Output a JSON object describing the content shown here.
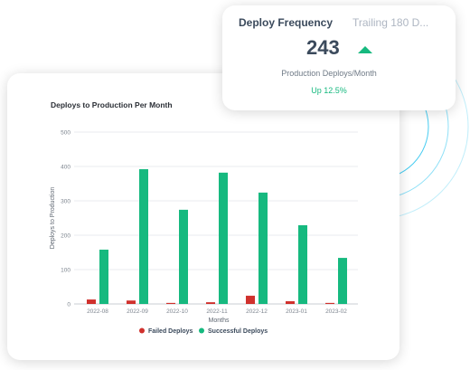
{
  "kpi": {
    "title": "Deploy Frequency",
    "range": "Trailing 180 D...",
    "value": "243",
    "trend": "up",
    "label": "Production Deploys/Month",
    "change": "Up 12.5%"
  },
  "colors": {
    "failed": "#d0312d",
    "successful": "#16b97f",
    "accent_ring": "#33c6f0"
  },
  "chart_data": {
    "type": "bar",
    "title": "Deploys to Production Per Month",
    "xlabel": "Months",
    "ylabel": "Deploys to Production",
    "ylim": [
      0,
      500
    ],
    "yticks": [
      "0",
      "100",
      "200",
      "300",
      "400",
      "500"
    ],
    "categories": [
      "2022-08",
      "2022-09",
      "2022-10",
      "2022-11",
      "2022-12",
      "2023-01",
      "2023-02"
    ],
    "series": [
      {
        "name": "Failed Deploys",
        "color": "#d0312d",
        "values": [
          13,
          10,
          3,
          5,
          24,
          8,
          3
        ]
      },
      {
        "name": "Successful Deploys",
        "color": "#16b97f",
        "values": [
          158,
          392,
          274,
          382,
          324,
          229,
          134
        ]
      }
    ],
    "grid": true,
    "legend": "bottom"
  }
}
